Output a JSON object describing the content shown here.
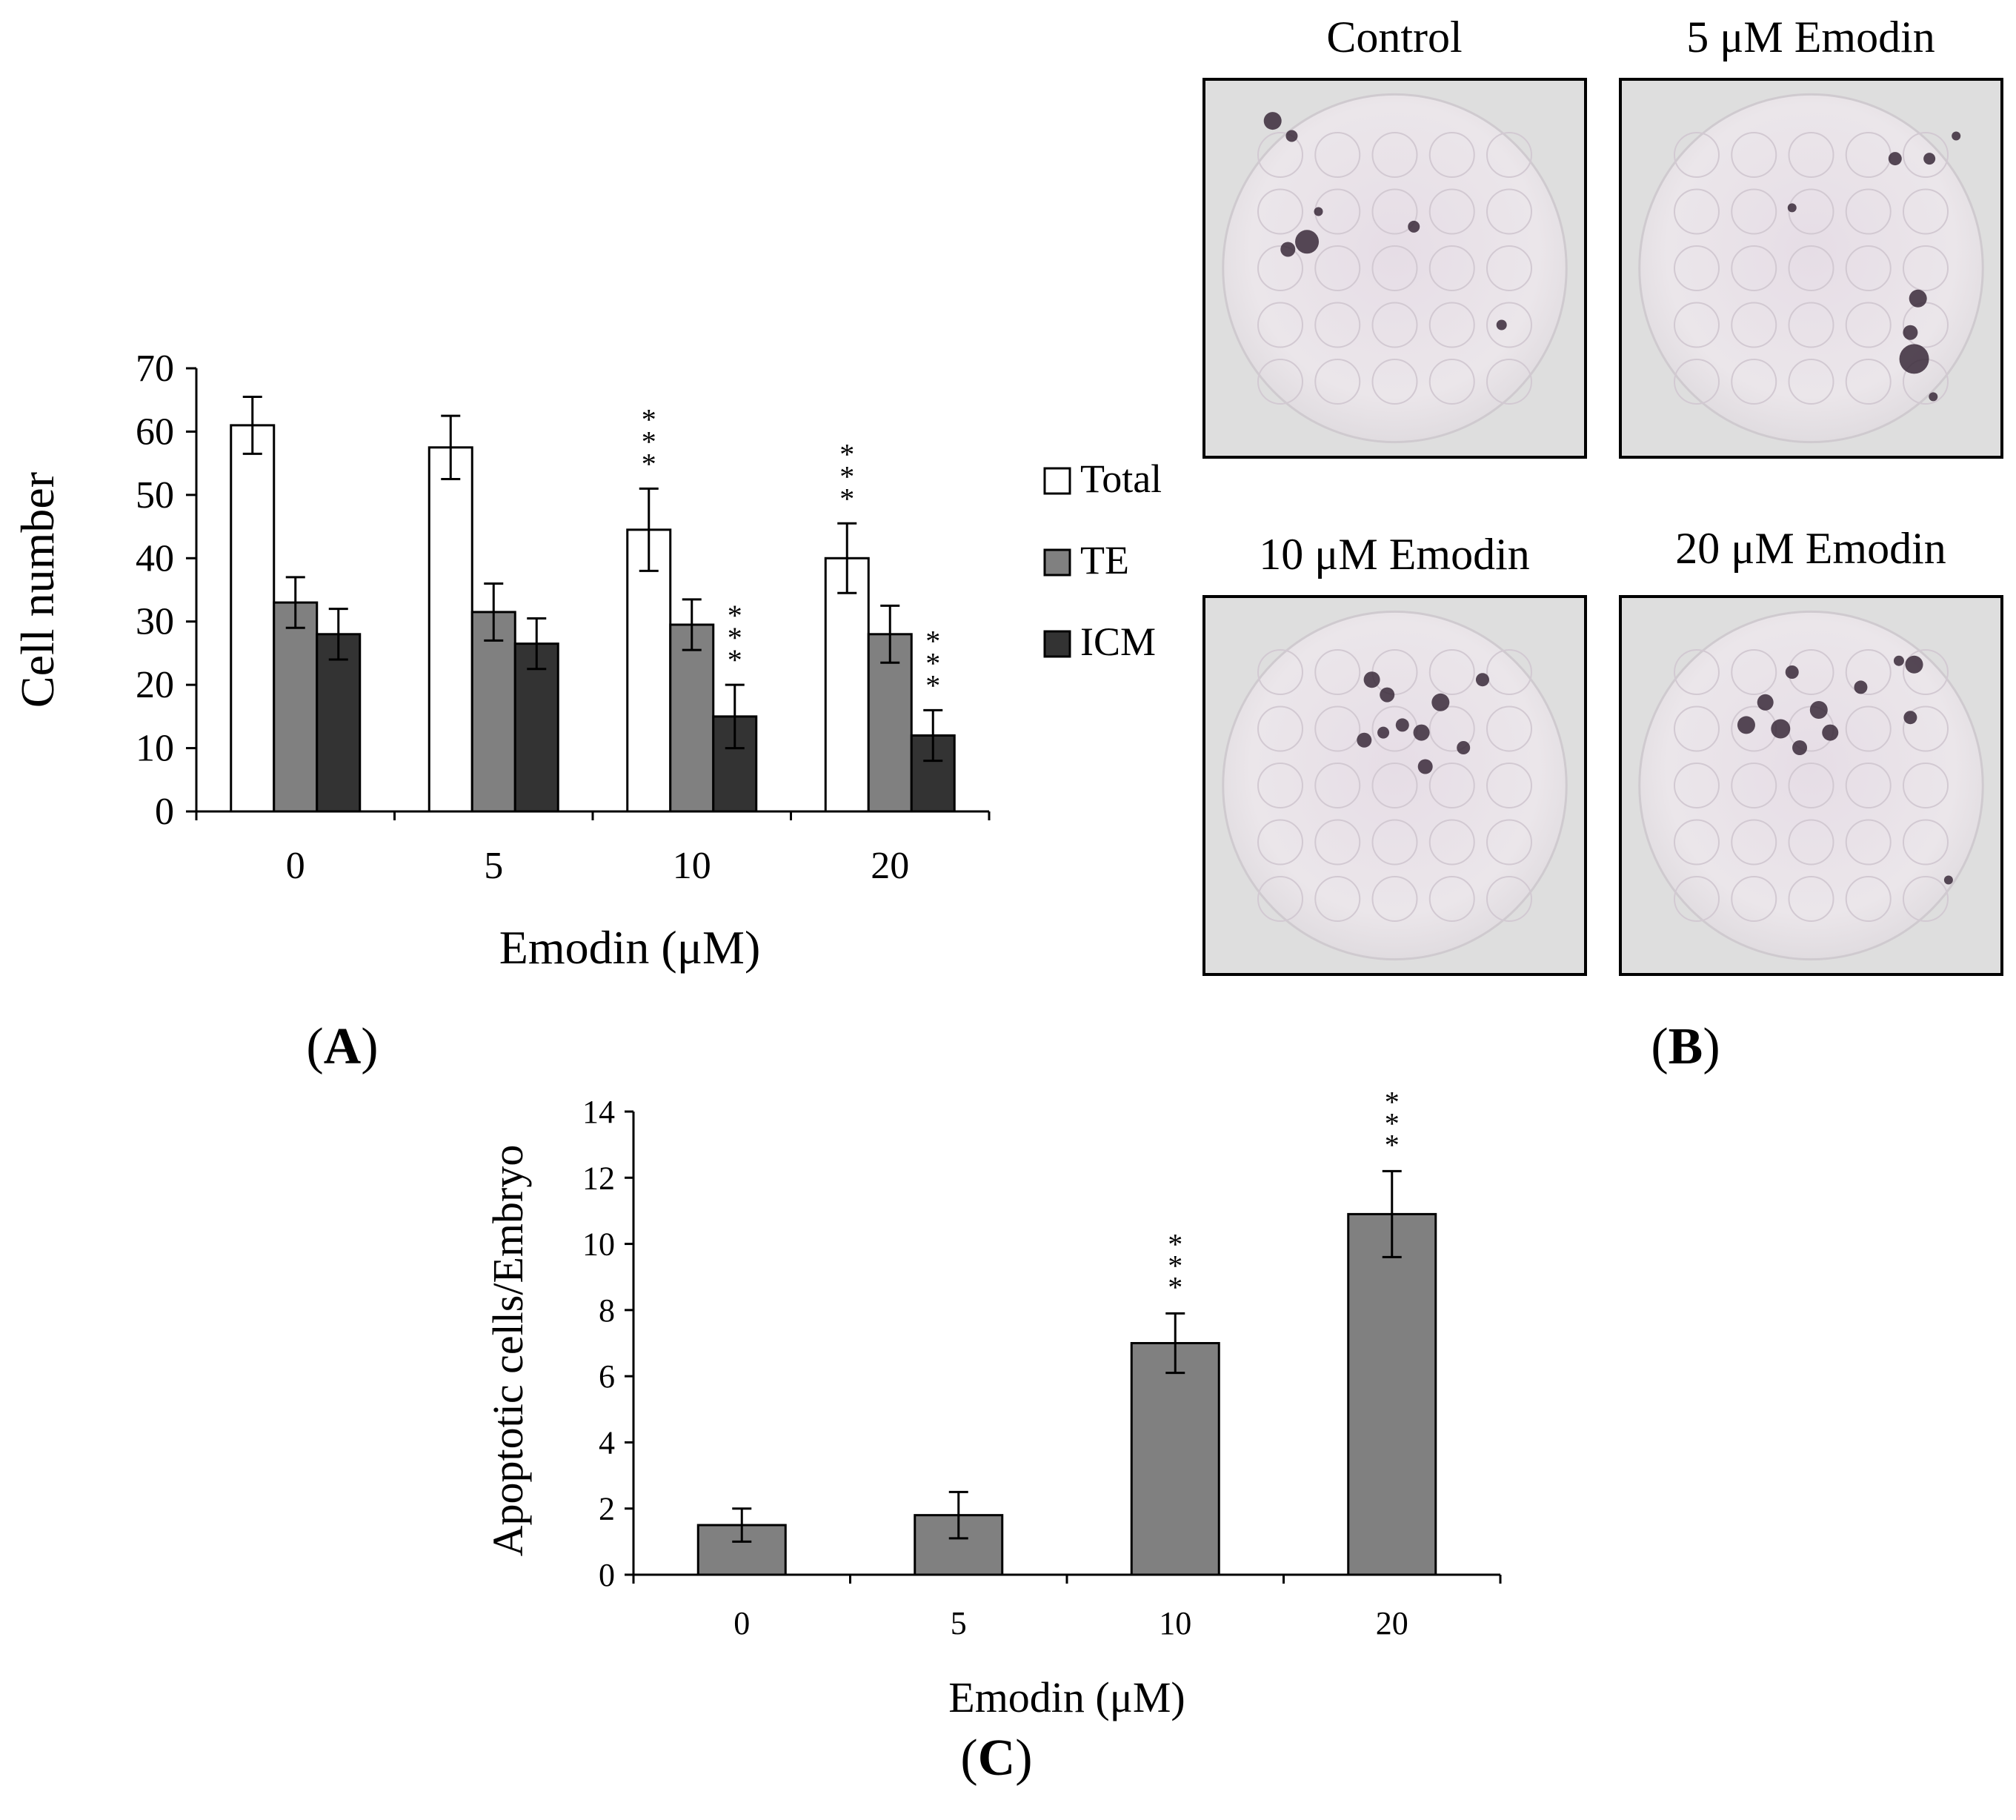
{
  "chart_data": [
    {
      "type": "bar",
      "panel": "A",
      "categories": [
        "0",
        "5",
        "10",
        "20"
      ],
      "xlabel": "Emodin (μM)",
      "ylabel": "Cell number",
      "ylim": [
        0,
        70
      ],
      "yticks": [
        "0",
        "10",
        "20",
        "30",
        "40",
        "50",
        "60",
        "70"
      ],
      "series": [
        {
          "name": "Total",
          "color": "#ffffff",
          "values": [
            61,
            57.5,
            44.5,
            40
          ],
          "errors": [
            4.5,
            5,
            6.5,
            5.5
          ],
          "significance": [
            "",
            "",
            "***",
            "***"
          ]
        },
        {
          "name": "TE",
          "color": "#808080",
          "values": [
            33,
            31.5,
            29.5,
            28
          ],
          "errors": [
            4,
            4.5,
            4,
            4.5
          ],
          "significance": [
            "",
            "",
            "",
            ""
          ]
        },
        {
          "name": "ICM",
          "color": "#333333",
          "values": [
            28,
            26.5,
            15,
            12
          ],
          "errors": [
            4,
            4,
            5,
            4
          ],
          "significance": [
            "",
            "",
            "***",
            "***"
          ]
        }
      ],
      "legend_position": "right"
    },
    {
      "type": "bar",
      "panel": "C",
      "categories": [
        "0",
        "5",
        "10",
        "20"
      ],
      "xlabel": "Emodin (μM)",
      "ylabel": "Apoptotic cells/Embryo",
      "ylim": [
        0,
        14
      ],
      "yticks": [
        "0",
        "2",
        "4",
        "6",
        "8",
        "10",
        "12",
        "14"
      ],
      "series": [
        {
          "color": "#808080",
          "values": [
            1.5,
            1.8,
            7.0,
            10.9
          ],
          "errors": [
            0.5,
            0.7,
            0.9,
            1.3
          ],
          "significance": [
            "",
            "",
            "***",
            "***"
          ]
        }
      ]
    }
  ],
  "images": {
    "panel": "B",
    "titles": [
      "Control",
      "5 μM Emodin",
      "10 μM Emodin",
      "20 μM Emodin"
    ]
  },
  "panel_labels": {
    "a": "A",
    "b": "B",
    "c": "C"
  }
}
